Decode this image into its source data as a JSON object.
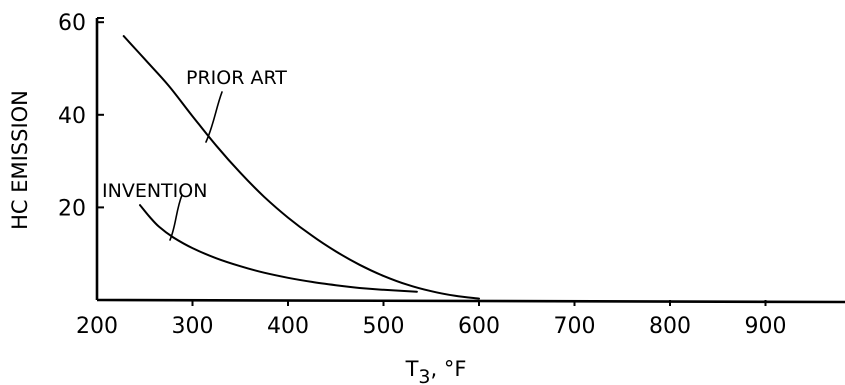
{
  "chart_data": {
    "type": "line",
    "title": "",
    "xlabel": "T₃, °F",
    "ylabel": "HC EMISSION",
    "x_ticks": [
      "200",
      "300",
      "400",
      "500",
      "600",
      "700",
      "800",
      "900"
    ],
    "y_ticks": [
      "20",
      "40",
      "60"
    ],
    "xlim": [
      200,
      1000
    ],
    "ylim": [
      0,
      60
    ],
    "grid": false,
    "series": [
      {
        "name": "PRIOR ART",
        "x": [
          228,
          250,
          275,
          300,
          325,
          350,
          375,
          400,
          425,
          450,
          475,
          500,
          525,
          550,
          575,
          600
        ],
        "y": [
          57,
          52,
          46.3,
          39.7,
          33.3,
          27.5,
          22.3,
          17.8,
          13.9,
          10.5,
          7.6,
          5.2,
          3.3,
          1.9,
          0.9,
          0.3
        ]
      },
      {
        "name": "INVENTION",
        "x": [
          245,
          255,
          265,
          280,
          300,
          325,
          350,
          375,
          400,
          425,
          450,
          475,
          500,
          535
        ],
        "y": [
          20.5,
          18,
          15.8,
          13.5,
          11.2,
          9,
          7.3,
          5.9,
          4.8,
          3.9,
          3.2,
          2.6,
          2.2,
          1.8
        ]
      }
    ]
  }
}
